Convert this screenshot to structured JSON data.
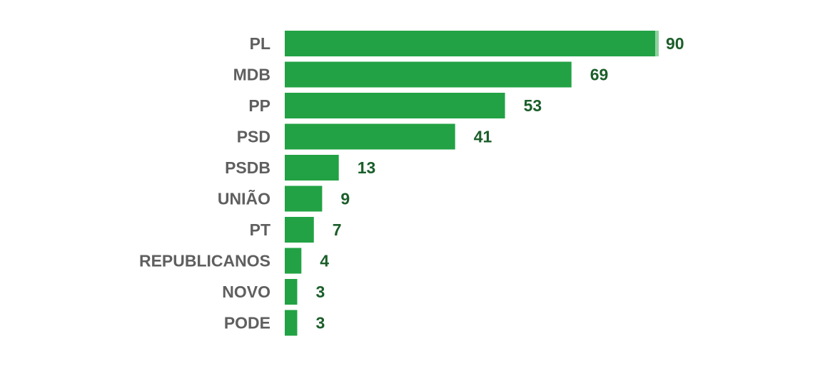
{
  "chart_data": {
    "type": "bar",
    "orientation": "horizontal",
    "categories": [
      "PL",
      "MDB",
      "PP",
      "PSD",
      "PSDB",
      "UNIÃO",
      "PT",
      "REPUBLICANOS",
      "NOVO",
      "PODE"
    ],
    "values": [
      90,
      69,
      53,
      41,
      13,
      9,
      7,
      4,
      3,
      3
    ],
    "xlim": [
      0,
      90
    ],
    "grid": false,
    "legend": "none",
    "colors": {
      "bar": "#22a244",
      "bar_highlight": "#8fd19e",
      "value_label": "#1b5e2a",
      "category_label": "#5f5f5f"
    }
  }
}
